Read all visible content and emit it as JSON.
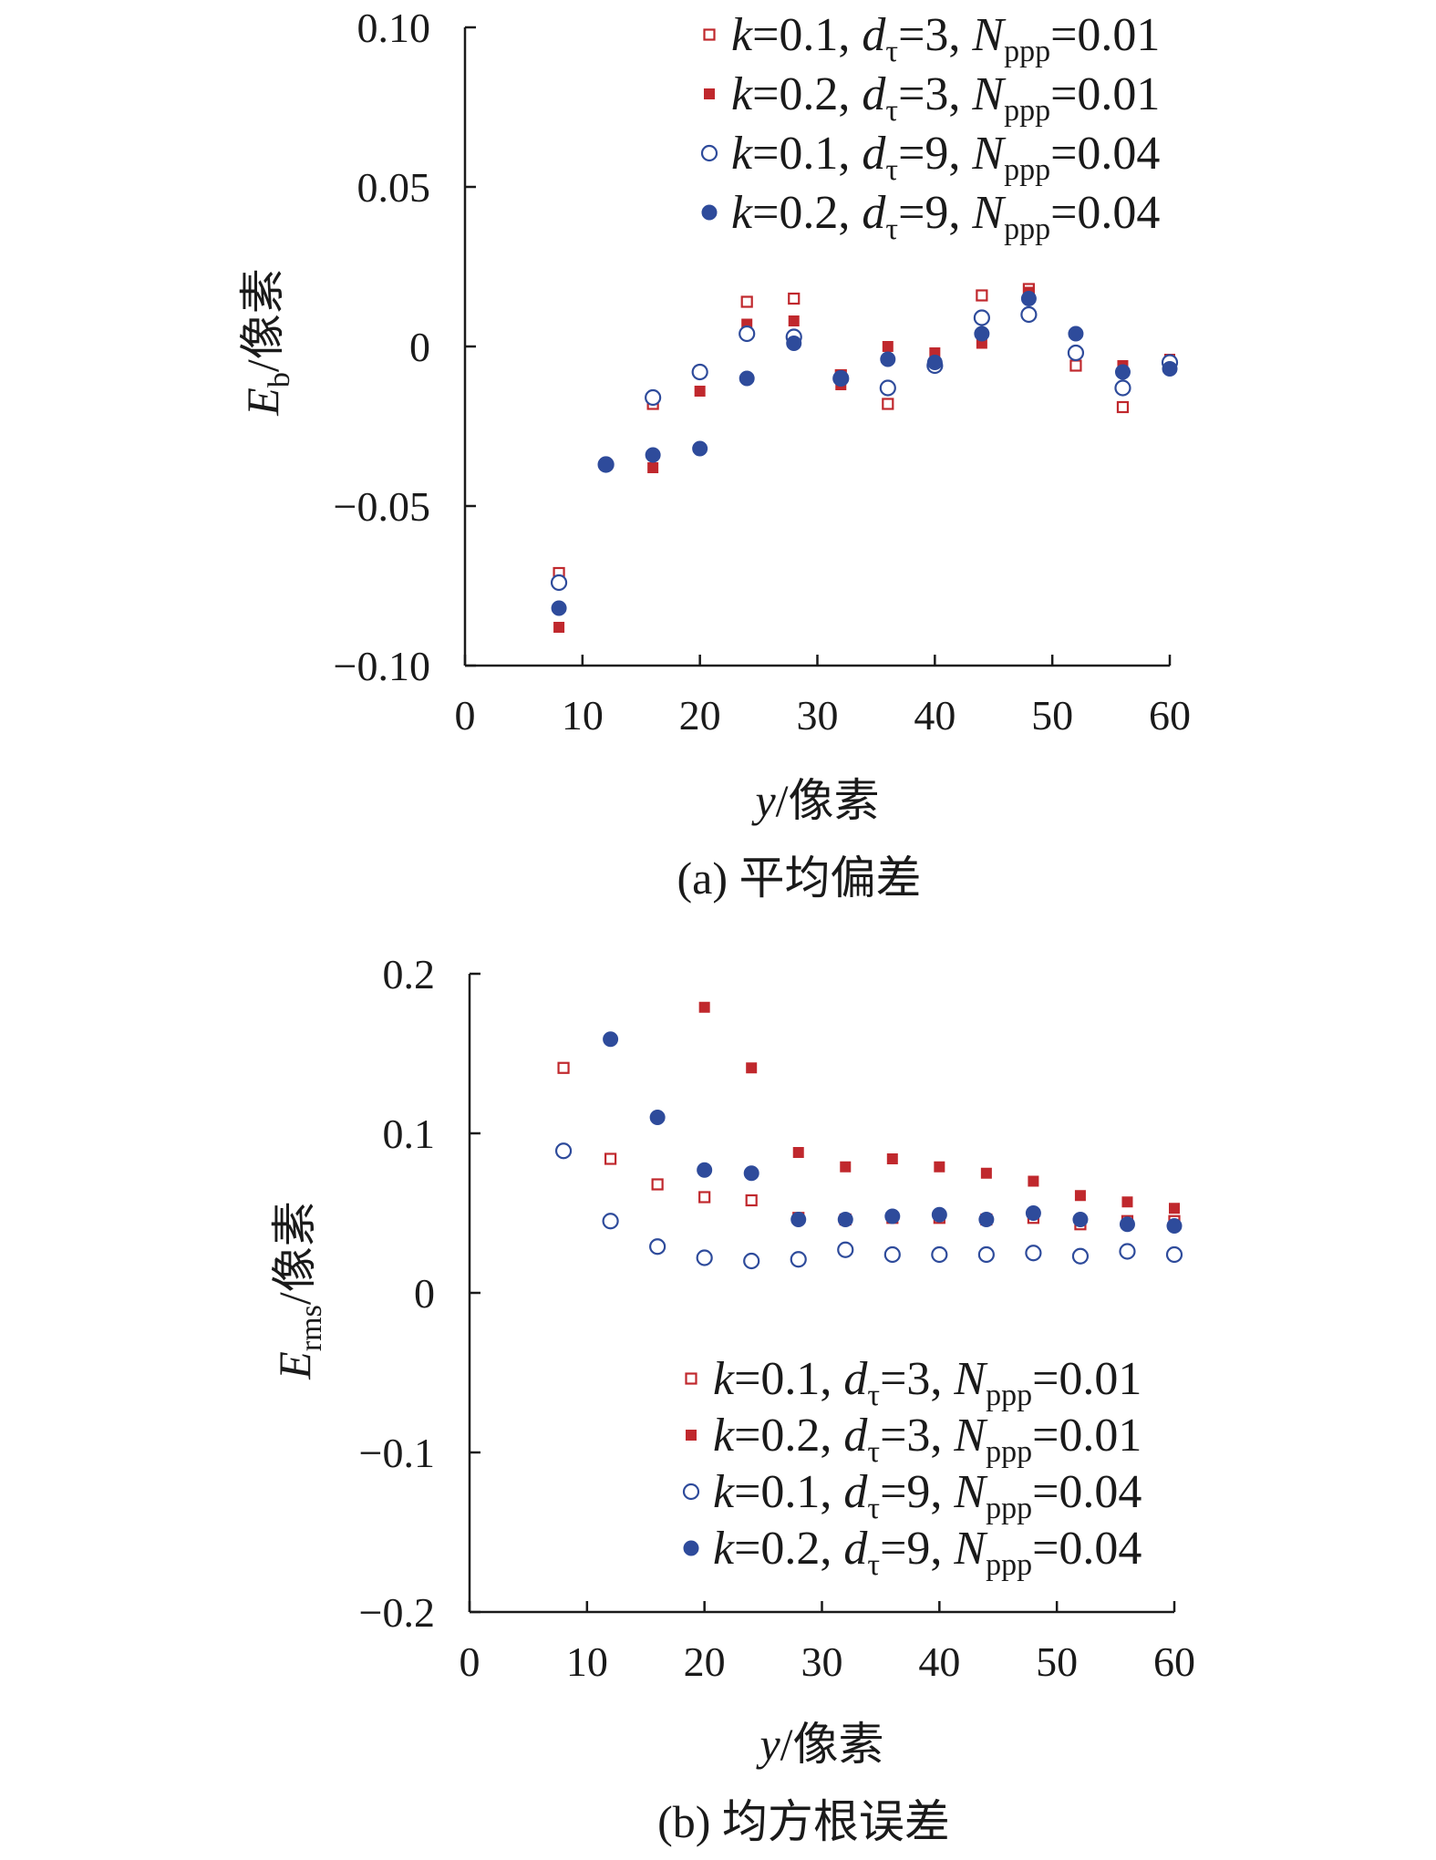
{
  "chart_data": [
    {
      "type": "scatter",
      "title": "",
      "caption": "(a) 平均偏差",
      "ylabel": {
        "main": "E",
        "sub": "b",
        "rest": "/像素"
      },
      "xlabel": {
        "main": "y",
        "rest": "/像素"
      },
      "xlim": [
        0,
        60
      ],
      "ylim": [
        -0.1,
        0.1
      ],
      "xticks": [
        0,
        10,
        20,
        30,
        40,
        50,
        60
      ],
      "yticks": [
        -0.1,
        -0.05,
        0,
        0.05,
        0.1
      ],
      "ytick_labels": [
        "−0.10",
        "−0.05",
        "0",
        "0.05",
        "0.10"
      ],
      "xtick_labels": [
        "0",
        "10",
        "20",
        "30",
        "40",
        "50",
        "60"
      ],
      "legend_position": "top-right",
      "series": [
        {
          "name": "k=0.1, dτ=3, Nppp=0.01",
          "legend": {
            "k": "0.1",
            "d": "3",
            "n": "0.01"
          },
          "marker": "square-open",
          "color": "#c0282d",
          "x": [
            8,
            12,
            16,
            20,
            24,
            28,
            32,
            36,
            40,
            44,
            48,
            52,
            56,
            60
          ],
          "y": [
            -0.071,
            -0.037,
            -0.018,
            -0.008,
            0.014,
            0.015,
            -0.009,
            -0.018,
            -0.006,
            0.016,
            0.018,
            -0.006,
            -0.019,
            -0.005
          ]
        },
        {
          "name": "k=0.2, dτ=3, Nppp=0.01",
          "legend": {
            "k": "0.2",
            "d": "3",
            "n": "0.01"
          },
          "marker": "square-filled",
          "color": "#c0282d",
          "x": [
            8,
            12,
            16,
            20,
            24,
            28,
            32,
            36,
            40,
            44,
            48,
            52,
            56,
            60
          ],
          "y": [
            -0.088,
            -0.037,
            -0.038,
            -0.014,
            0.007,
            0.008,
            -0.012,
            0.0,
            -0.002,
            0.001,
            0.017,
            -0.002,
            -0.006,
            -0.004
          ]
        },
        {
          "name": "k=0.1, dτ=9, Nppp=0.04",
          "legend": {
            "k": "0.1",
            "d": "9",
            "n": "0.04"
          },
          "marker": "circle-open",
          "color": "#2e4b9b",
          "x": [
            8,
            12,
            16,
            20,
            24,
            28,
            32,
            36,
            40,
            44,
            48,
            52,
            56,
            60
          ],
          "y": [
            -0.074,
            -0.037,
            -0.016,
            -0.008,
            0.004,
            0.003,
            -0.01,
            -0.013,
            -0.006,
            0.009,
            0.01,
            -0.002,
            -0.013,
            -0.005
          ]
        },
        {
          "name": "k=0.2, dτ=9, Nppp=0.04",
          "legend": {
            "k": "0.2",
            "d": "9",
            "n": "0.04"
          },
          "marker": "circle-filled",
          "color": "#2e4b9b",
          "x": [
            8,
            12,
            16,
            20,
            24,
            28,
            32,
            36,
            40,
            44,
            48,
            52,
            56,
            60
          ],
          "y": [
            -0.082,
            -0.037,
            -0.034,
            -0.032,
            -0.01,
            0.001,
            -0.01,
            -0.004,
            -0.005,
            0.004,
            0.015,
            0.004,
            -0.008,
            -0.007
          ]
        }
      ]
    },
    {
      "type": "scatter",
      "title": "",
      "caption": "(b) 均方根误差",
      "ylabel": {
        "main": "E",
        "sub": "rms",
        "rest": "/像素"
      },
      "xlabel": {
        "main": "y",
        "rest": "/像素"
      },
      "xlim": [
        0,
        60
      ],
      "ylim": [
        -0.2,
        0.2
      ],
      "xticks": [
        0,
        10,
        20,
        30,
        40,
        50,
        60
      ],
      "yticks": [
        -0.2,
        -0.1,
        0,
        0.1,
        0.2
      ],
      "ytick_labels": [
        "−0.2",
        "−0.1",
        "0",
        "0.1",
        "0.2"
      ],
      "xtick_labels": [
        "0",
        "10",
        "20",
        "30",
        "40",
        "50",
        "60"
      ],
      "legend_position": "bottom-right",
      "series": [
        {
          "name": "k=0.1, dτ=3, Nppp=0.01",
          "legend": {
            "k": "0.1",
            "d": "3",
            "n": "0.01"
          },
          "marker": "square-open",
          "color": "#c0282d",
          "x": [
            8,
            12,
            16,
            20,
            24,
            28,
            32,
            36,
            40,
            44,
            48,
            52,
            56,
            60
          ],
          "y": [
            0.141,
            0.084,
            0.068,
            0.06,
            0.058,
            0.047,
            0.046,
            0.047,
            0.047,
            0.046,
            0.047,
            0.043,
            0.045,
            0.045
          ]
        },
        {
          "name": "k=0.2, dτ=3, Nppp=0.01",
          "legend": {
            "k": "0.2",
            "d": "3",
            "n": "0.01"
          },
          "marker": "square-filled",
          "color": "#c0282d",
          "x": [
            8,
            12,
            16,
            20,
            24,
            28,
            32,
            36,
            40,
            44,
            48,
            52,
            56,
            60
          ],
          "y": [
            null,
            null,
            null,
            0.179,
            0.141,
            0.088,
            0.079,
            0.084,
            0.079,
            0.075,
            0.07,
            0.061,
            0.057,
            0.053
          ]
        },
        {
          "name": "k=0.1, dτ=9, Nppp=0.04",
          "legend": {
            "k": "0.1",
            "d": "9",
            "n": "0.04"
          },
          "marker": "circle-open",
          "color": "#2e4b9b",
          "x": [
            8,
            12,
            16,
            20,
            24,
            28,
            32,
            36,
            40,
            44,
            48,
            52,
            56,
            60
          ],
          "y": [
            0.089,
            0.045,
            0.029,
            0.022,
            0.02,
            0.021,
            0.027,
            0.024,
            0.024,
            0.024,
            0.025,
            0.023,
            0.026,
            0.024
          ]
        },
        {
          "name": "k=0.2, dτ=9, Nppp=0.04",
          "legend": {
            "k": "0.2",
            "d": "9",
            "n": "0.04"
          },
          "marker": "circle-filled",
          "color": "#2e4b9b",
          "x": [
            8,
            12,
            16,
            20,
            24,
            28,
            32,
            36,
            40,
            44,
            48,
            52,
            56,
            60
          ],
          "y": [
            null,
            0.159,
            0.11,
            0.077,
            0.075,
            0.046,
            0.046,
            0.048,
            0.049,
            0.046,
            0.05,
            0.046,
            0.043,
            0.042
          ]
        }
      ]
    }
  ]
}
